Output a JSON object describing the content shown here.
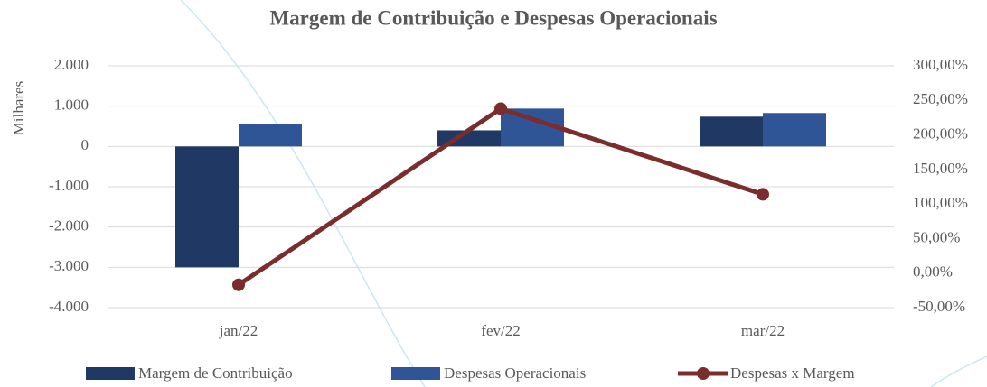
{
  "chart_data": {
    "type": "bar",
    "title": "Margem de Contribuição e Despesas Operacionais",
    "y_axis_label": "Milhares",
    "categories": [
      "jan/22",
      "fev/22",
      "mar/22"
    ],
    "series": [
      {
        "name": "Margem de Contribuição",
        "color": "#203864",
        "values": [
          -3000,
          400,
          740
        ]
      },
      {
        "name": "Despesas Operacionais",
        "color": "#2f5597",
        "values": [
          560,
          940,
          830
        ]
      },
      {
        "name": "Despesas x Margem",
        "color": "#7b2c2c",
        "type": "line",
        "axis": "y2",
        "values": [
          -17,
          238,
          114
        ]
      }
    ],
    "ylim": [
      -4000,
      2000
    ],
    "yticks": [
      {
        "value": 2000,
        "label": "2.000"
      },
      {
        "value": 1000,
        "label": "1.000"
      },
      0,
      {
        "value": -1000,
        "label": "-1.000"
      },
      {
        "value": -2000,
        "label": "-2.000"
      },
      {
        "value": -3000,
        "label": "-3.000"
      },
      {
        "value": -4000,
        "label": "-4.000"
      }
    ],
    "y2lim": [
      -50,
      300
    ],
    "y2ticks": [
      {
        "value": 300,
        "label": "300,00%"
      },
      {
        "value": 250,
        "label": "250,00%"
      },
      {
        "value": 200,
        "label": "200,00%"
      },
      {
        "value": 150,
        "label": "150,00%"
      },
      {
        "value": 100,
        "label": "100,00%"
      },
      {
        "value": 50,
        "label": "50,00%"
      },
      {
        "value": 0,
        "label": "0,00%"
      },
      {
        "value": -50,
        "label": "-50,00%"
      }
    ],
    "grid": true,
    "legend": "bottom"
  }
}
